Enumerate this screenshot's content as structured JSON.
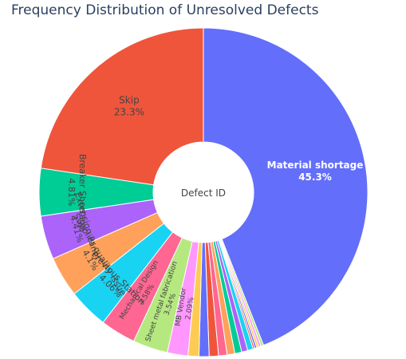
{
  "chart_data": {
    "type": "pie",
    "title": "Frequency Distribution of Unresolved Defects",
    "center_label": "Defect ID",
    "hole": true,
    "sort": "descending",
    "direction": "clockwise",
    "slices": [
      {
        "label": "Material shortage",
        "percent": 45.3,
        "percent_text": "45.3%",
        "color": "#636efa",
        "label_mode": "inside",
        "text_color": "#ffffff",
        "bold": true
      },
      {
        "label": "",
        "percent": 0.26,
        "color": "#b6e880"
      },
      {
        "label": "",
        "percent": 0.24,
        "color": "#ff97ff"
      },
      {
        "label": "",
        "percent": 0.22,
        "color": "#fecb52"
      },
      {
        "label": "",
        "percent": 0.2,
        "color": "#636efa"
      },
      {
        "label": "",
        "percent": 0.18,
        "color": "#ef553b"
      },
      {
        "label": "",
        "percent": 0.56,
        "color": "#19d3f3"
      },
      {
        "label": "",
        "percent": 0.62,
        "color": "#ab63fa"
      },
      {
        "label": "",
        "percent": 0.7,
        "color": "#00cc96"
      },
      {
        "label": "",
        "percent": 0.78,
        "color": "#ffa15a"
      },
      {
        "label": "",
        "percent": 0.86,
        "color": "#ff6692"
      },
      {
        "label": "",
        "percent": 0.94,
        "color": "#ef553b"
      },
      {
        "label": "",
        "percent": 1.02,
        "color": "#636efa"
      },
      {
        "label": "",
        "percent": 1.1,
        "color": "#fecb52"
      },
      {
        "label": "MB Vendor",
        "percent": 2.09,
        "percent_text": "2.09%",
        "color": "#ff97ff",
        "label_mode": "radial",
        "text_color": "#444444"
      },
      {
        "label": "Sheet metal fabrication",
        "percent": 3.54,
        "percent_text": "3.54%",
        "color": "#b6e880",
        "label_mode": "radial",
        "text_color": "#444444"
      },
      {
        "label": "Mechanical Design",
        "percent": 3.58,
        "percent_text": "3.58%",
        "color": "#ff6692",
        "label_mode": "radial",
        "text_color": "#444444"
      },
      {
        "label": "Previous Station",
        "percent": 4.06,
        "percent_text": "4.06%",
        "color": "#19d3f3",
        "label_mode": "tangential",
        "text_color": "#444444"
      },
      {
        "label": "Supplier quality issue",
        "percent": 4.1,
        "percent_text": "4.1%",
        "color": "#ffa15a",
        "label_mode": "tangential",
        "text_color": "#444444"
      },
      {
        "label": "Extension Panel",
        "percent": 4.41,
        "percent_text": "4.41%",
        "color": "#ab63fa",
        "label_mode": "tangential",
        "text_color": "#444444"
      },
      {
        "label": "Breaker Shortage",
        "percent": 4.81,
        "percent_text": "4.81%",
        "color": "#00cc96",
        "label_mode": "tangential",
        "text_color": "#444444"
      },
      {
        "label": "Skip",
        "percent": 23.3,
        "percent_text": "23.3%",
        "color": "#ef553b",
        "label_mode": "inside",
        "text_color": "#444444"
      }
    ]
  }
}
